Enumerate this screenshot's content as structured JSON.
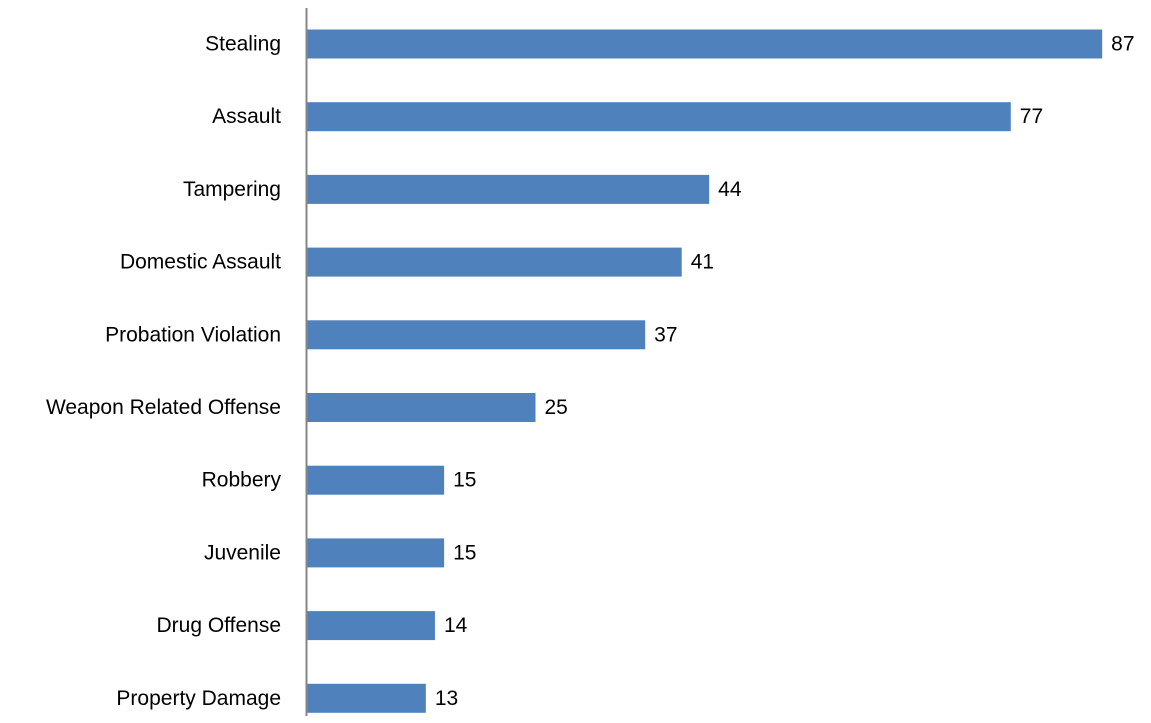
{
  "chart_data": {
    "type": "bar",
    "orientation": "horizontal",
    "categories": [
      "Stealing",
      "Assault",
      "Tampering",
      "Domestic Assault",
      "Probation Violation",
      "Weapon Related Offense",
      "Robbery",
      "Juvenile",
      "Drug Offense",
      "Property Damage"
    ],
    "values": [
      87,
      77,
      44,
      41,
      37,
      25,
      15,
      15,
      14,
      13
    ],
    "data_labels": [
      "87",
      "77",
      "44",
      "41",
      "37",
      "25",
      "15",
      "15",
      "14",
      "13"
    ],
    "title": "",
    "xlabel": "",
    "ylabel": "",
    "xlim": [
      0,
      87
    ],
    "grid": false,
    "legend": "none",
    "bar_color": "#4f81bd",
    "axis_color": "#868686"
  }
}
